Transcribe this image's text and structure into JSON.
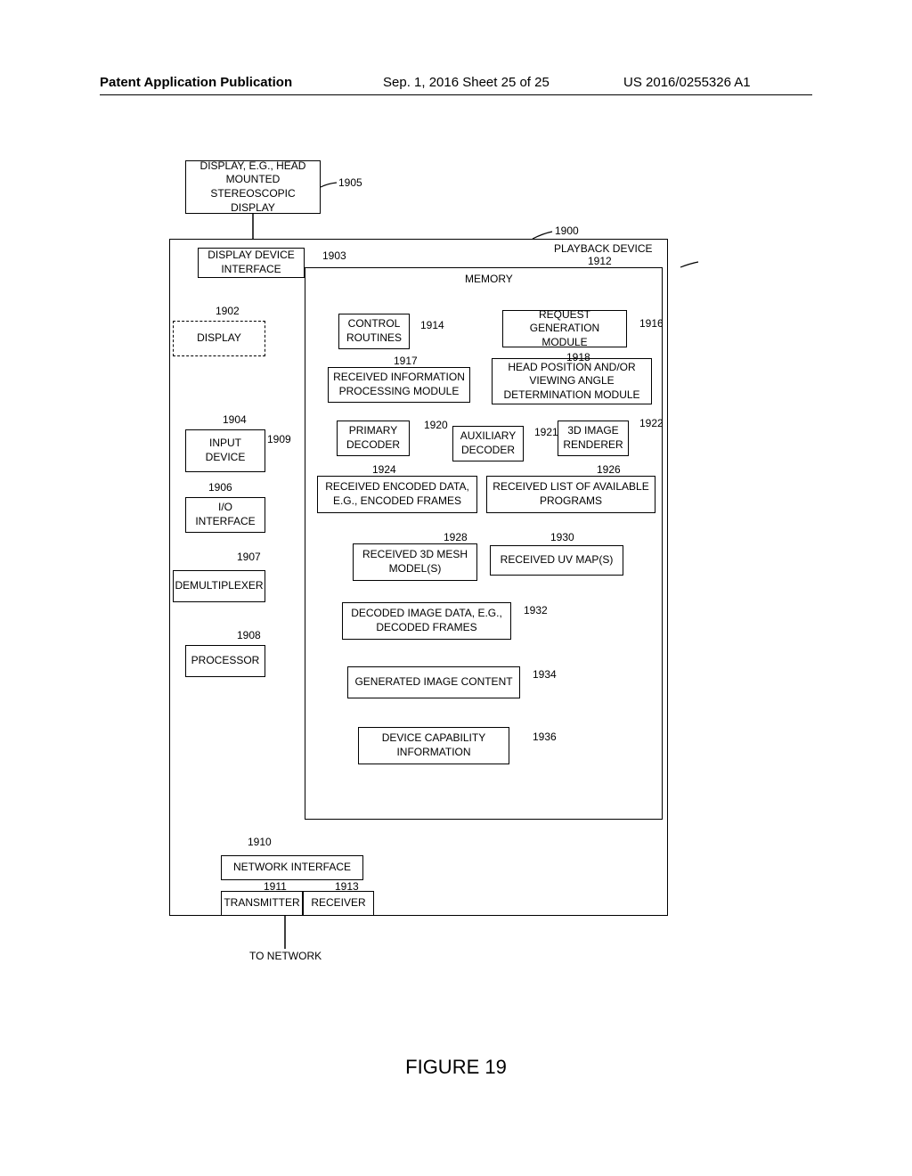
{
  "header": {
    "left": "Patent Application Publication",
    "center": "Sep. 1, 2016  Sheet 25 of 25",
    "right": "US 2016/0255326 A1"
  },
  "figure_caption": "FIGURE 19",
  "to_network": "TO NETWORK",
  "boxes": {
    "display_ext": "DISPLAY, E.G., HEAD\nMOUNTED\nSTEREOSCOPIC DISPLAY",
    "display_device_if": "DISPLAY DEVICE\nINTERFACE",
    "display": "DISPLAY",
    "input_device": "INPUT\nDEVICE",
    "io_interface": "I/O\nINTERFACE",
    "demux": "DEMULTIPLEXER",
    "processor": "PROCESSOR",
    "playback_device": "PLAYBACK DEVICE",
    "memory": "MEMORY",
    "control_routines": "CONTROL\nROUTINES",
    "request_gen": "REQUEST\nGENERATION MODULE",
    "received_info": "RECEIVED INFORMATION\nPROCESSING MODULE",
    "head_pos": "HEAD POSITION AND/OR\nVIEWING ANGLE\nDETERMINATION MODULE",
    "primary_decoder": "PRIMARY\nDECODER",
    "aux_decoder": "AUXILIARY\nDECODER",
    "renderer": "3D IMAGE\nRENDERER",
    "received_encoded": "RECEIVED ENCODED DATA,\nE.G., ENCODED FRAMES",
    "received_list": "RECEIVED LIST OF AVAILABLE\nPROGRAMS",
    "received_mesh": "RECEIVED 3D MESH\nMODEL(S)",
    "received_uv": "RECEIVED UV MAP(S)",
    "decoded_frames": "DECODED IMAGE DATA, E.G.,\nDECODED FRAMES",
    "generated_content": "GENERATED IMAGE CONTENT",
    "capability": "DEVICE CAPABILITY\nINFORMATION",
    "network_interface": "NETWORK INTERFACE",
    "transmitter": "TRANSMITTER",
    "receiver": "RECEIVER"
  },
  "refs": {
    "display_ext": "1905",
    "playback": "1900",
    "display_device_if": "1903",
    "memory": "1912",
    "display": "1902",
    "control_routines": "1914",
    "request_gen": "1916",
    "received_info": "1917",
    "head_pos": "1918",
    "input_device": "1904",
    "io_ref": "1909",
    "primary_decoder": "1920",
    "aux_decoder": "1921",
    "renderer": "1922",
    "received_encoded": "1924",
    "received_list": "1926",
    "io_interface": "1906",
    "received_mesh": "1928",
    "received_uv": "1930",
    "demux": "1907",
    "decoded_frames": "1932",
    "processor": "1908",
    "generated_content": "1934",
    "capability": "1936",
    "network_interface": "1910",
    "transmitter": "1911",
    "receiver": "1913"
  },
  "colors": {
    "line": "#000000",
    "background": "#ffffff"
  }
}
